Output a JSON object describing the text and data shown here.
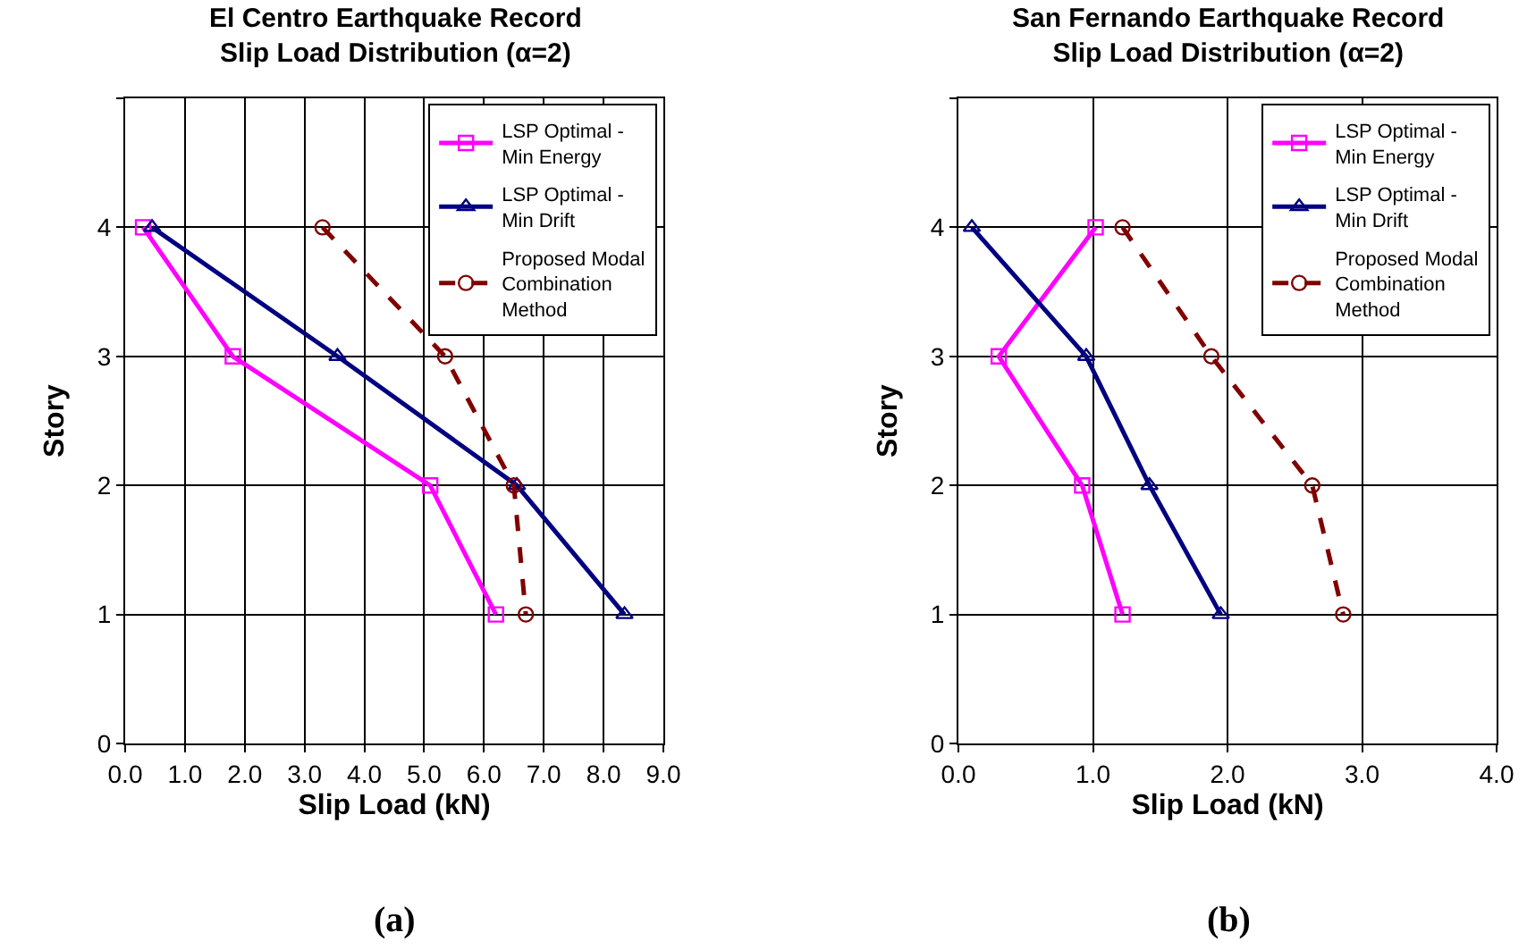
{
  "chart_data": [
    {
      "type": "line",
      "title": "El Centro Earthquake Record\nSlip Load Distribution (α=2)",
      "xlabel": "Slip Load (kN)",
      "ylabel": "Story",
      "xlim": [
        0,
        9
      ],
      "xticks": [
        {
          "value": 0,
          "label": "0.0"
        },
        {
          "value": 1,
          "label": "1.0"
        },
        {
          "value": 2,
          "label": "2.0"
        },
        {
          "value": 3,
          "label": "3.0"
        },
        {
          "value": 4,
          "label": "4.0"
        },
        {
          "value": 5,
          "label": "5.0"
        },
        {
          "value": 6,
          "label": "6.0"
        },
        {
          "value": 7,
          "label": "7.0"
        },
        {
          "value": 8,
          "label": "8.0"
        },
        {
          "value": 9,
          "label": "9.0"
        }
      ],
      "ylim": [
        0,
        5
      ],
      "yticks": [
        0,
        1,
        2,
        3,
        4,
        {
          "value": 5,
          "label": null
        }
      ],
      "grid": true,
      "legend": "top right",
      "series": [
        {
          "name": "LSP Optimal -\nMin Energy",
          "color": "#ff00ff",
          "marker": "square",
          "line_style": "solid",
          "x": [
            0.3,
            1.8,
            5.1,
            6.2
          ],
          "values": [
            4,
            3,
            2,
            1
          ]
        },
        {
          "name": "LSP Optimal -\nMin Drift",
          "color": "#000080",
          "marker": "triangle",
          "line_style": "solid",
          "x": [
            0.45,
            3.55,
            6.55,
            8.35
          ],
          "values": [
            4,
            3,
            2,
            1
          ]
        },
        {
          "name": "Proposed Modal\nCombination\nMethod",
          "color": "#800000",
          "marker": "circle",
          "line_style": "dashed",
          "x": [
            3.3,
            5.35,
            6.5,
            6.7
          ],
          "values": [
            4,
            3,
            2,
            1
          ]
        }
      ],
      "annotations": [
        "(a)"
      ]
    },
    {
      "type": "line",
      "title": "San Fernando Earthquake Record\nSlip Load Distribution (α=2)",
      "xlabel": "Slip Load (kN)",
      "ylabel": "Story",
      "xlim": [
        0,
        4
      ],
      "xticks": [
        {
          "value": 0,
          "label": "0.0"
        },
        {
          "value": 1,
          "label": "1.0"
        },
        {
          "value": 2,
          "label": "2.0"
        },
        {
          "value": 3,
          "label": "3.0"
        },
        {
          "value": 4,
          "label": "4.0"
        }
      ],
      "ylim": [
        0,
        5
      ],
      "yticks": [
        0,
        1,
        2,
        3,
        4,
        {
          "value": 5,
          "label": null
        }
      ],
      "grid": true,
      "legend": "top right",
      "series": [
        {
          "name": "LSP Optimal -\nMin Energy",
          "color": "#ff00ff",
          "marker": "square",
          "line_style": "solid",
          "x": [
            1.02,
            0.3,
            0.92,
            1.22
          ],
          "values": [
            4,
            3,
            2,
            1
          ]
        },
        {
          "name": "LSP Optimal -\nMin Drift",
          "color": "#000080",
          "marker": "triangle",
          "line_style": "solid",
          "x": [
            0.1,
            0.95,
            1.42,
            1.95
          ],
          "values": [
            4,
            3,
            2,
            1
          ]
        },
        {
          "name": "Proposed Modal\nCombination\nMethod",
          "color": "#800000",
          "marker": "circle",
          "line_style": "dashed",
          "x": [
            1.22,
            1.88,
            2.63,
            2.86
          ],
          "values": [
            4,
            3,
            2,
            1
          ]
        }
      ],
      "annotations": [
        "(b)"
      ]
    }
  ]
}
